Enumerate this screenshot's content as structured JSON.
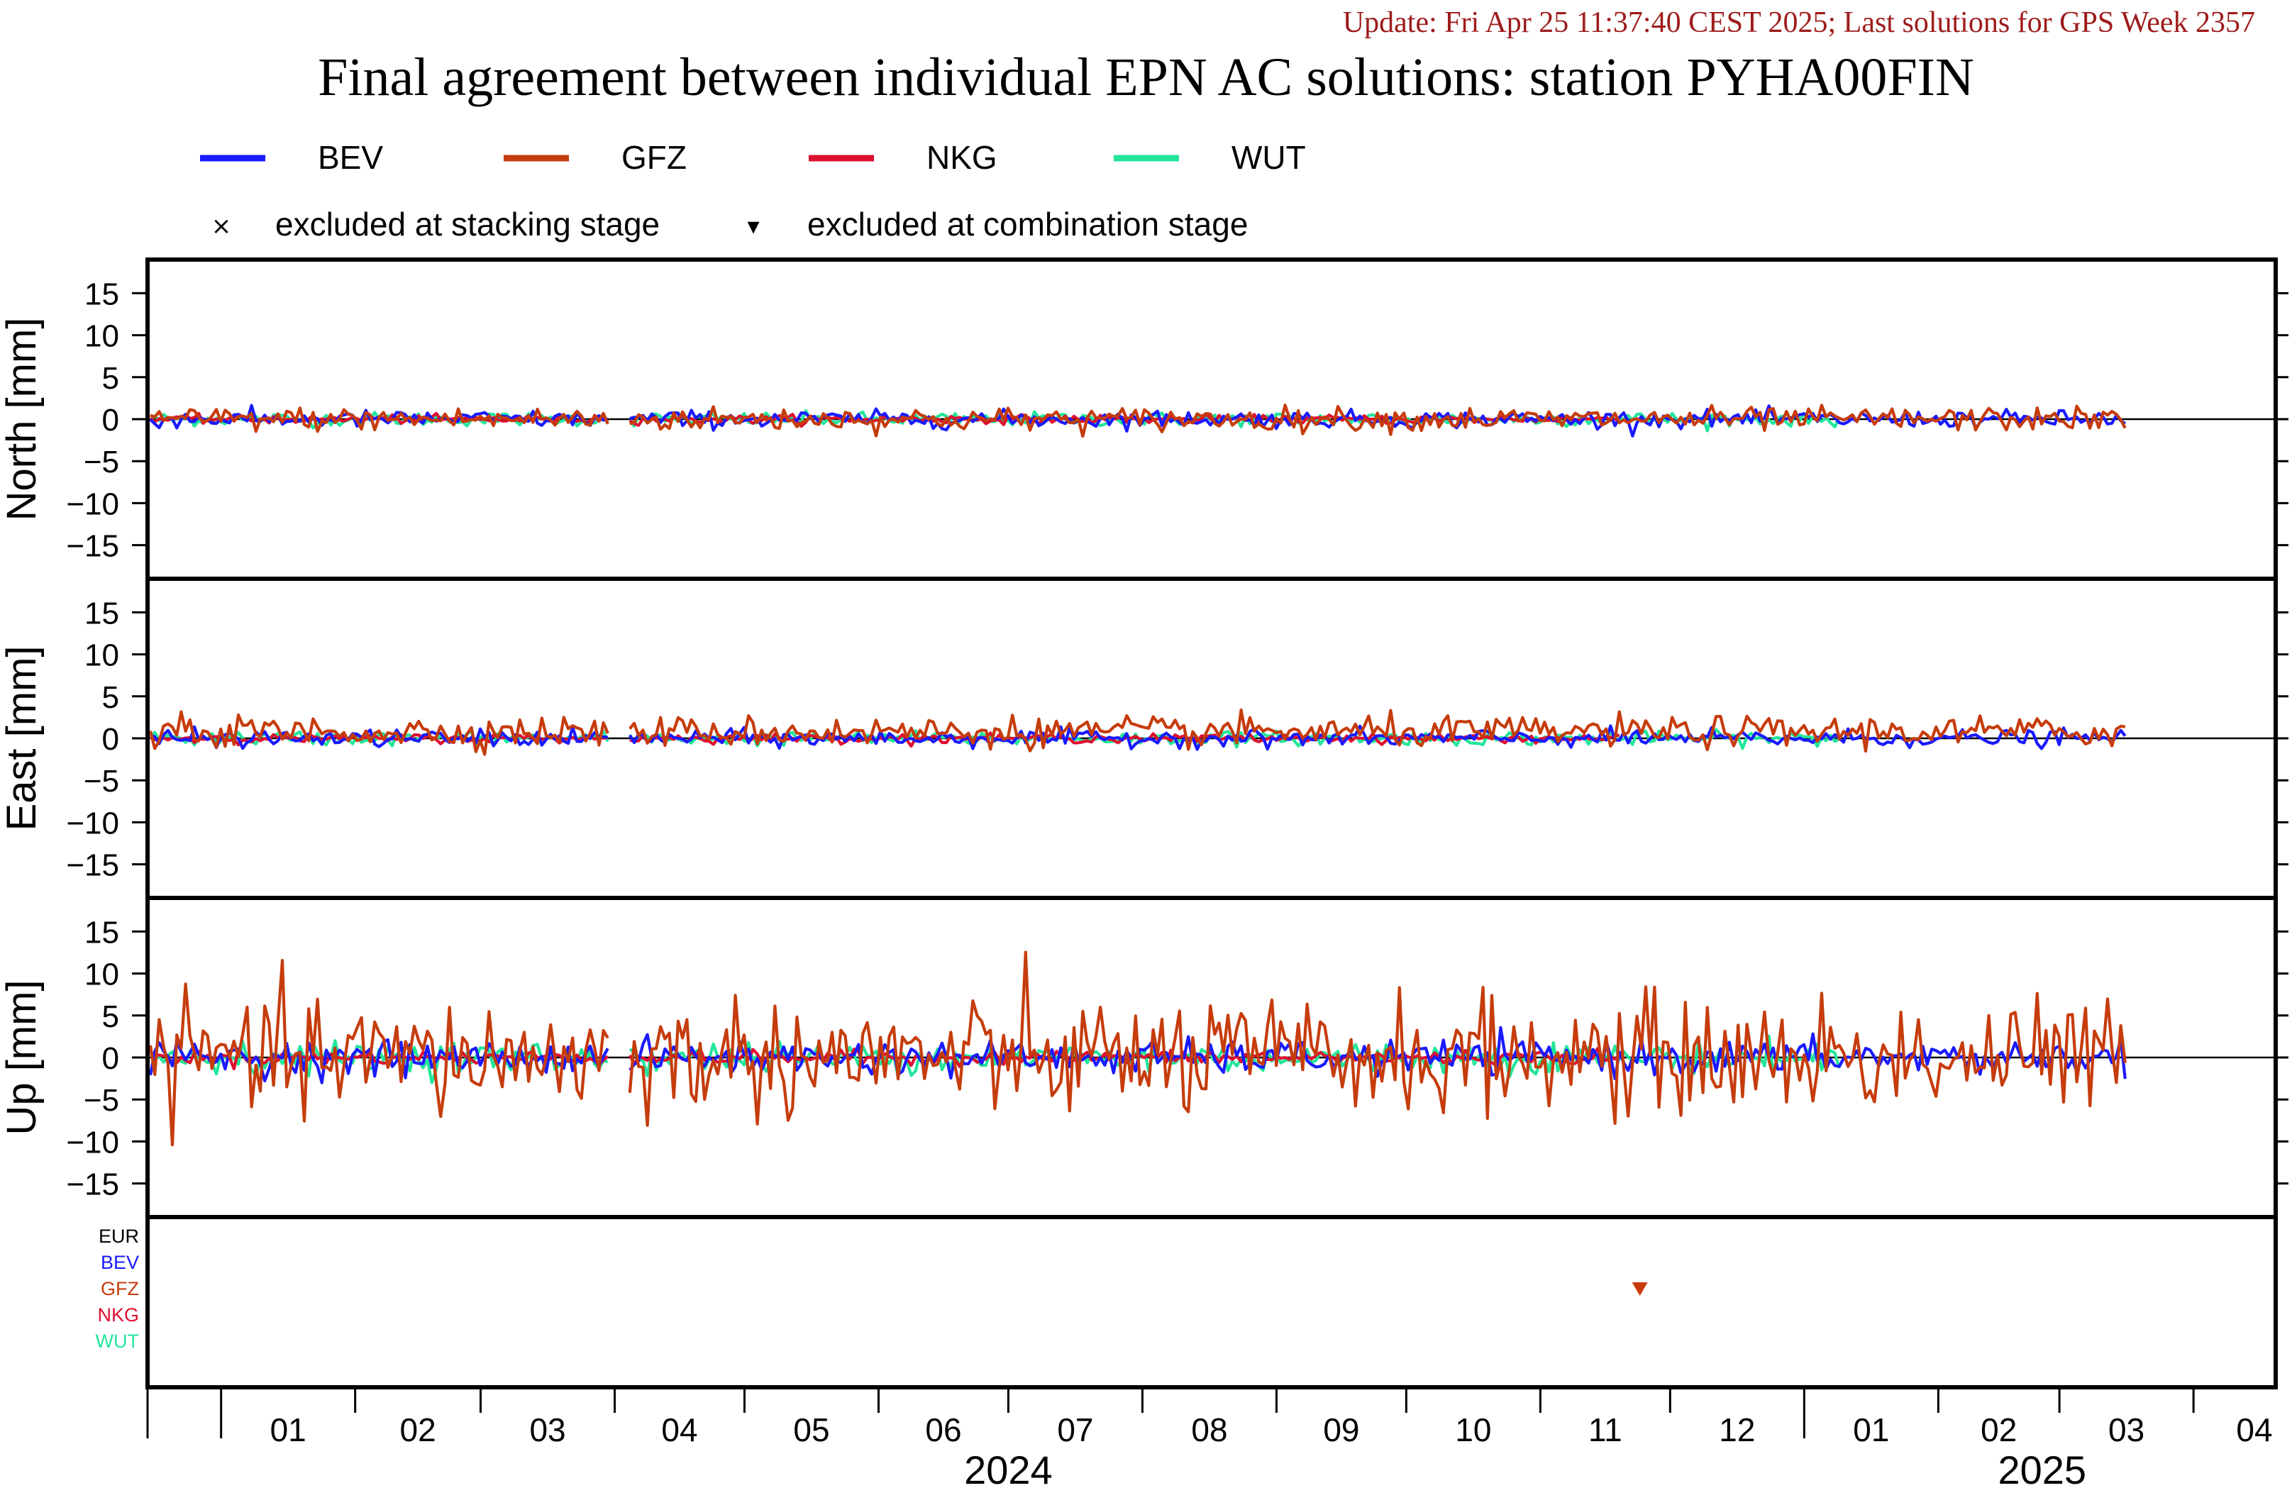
{
  "header": {
    "update": "Update: Fri Apr 25 11:37:40 CEST 2025; Last solutions for GPS Week 2357",
    "title": "Final agreement between individual EPN AC solutions: station PYHA00FIN"
  },
  "legend": {
    "series": [
      {
        "name": "BEV",
        "color": "#1a1aff"
      },
      {
        "name": "GFZ",
        "color": "#c63c0c"
      },
      {
        "name": "NKG",
        "color": "#de1030"
      },
      {
        "name": "WUT",
        "color": "#22e69a"
      }
    ],
    "markers": [
      {
        "symbol": "×",
        "label": "excluded at stacking stage"
      },
      {
        "symbol": "▾",
        "label": "excluded at combination stage"
      }
    ]
  },
  "chart_data": [
    {
      "type": "line",
      "ylabel": "North [mm]",
      "ylim": [
        -19,
        19
      ],
      "yticks": [
        15,
        10,
        5,
        0,
        -5,
        -10,
        -15
      ],
      "amplitudes": {
        "BEV": 0.5,
        "GFZ": 0.7,
        "NKG": 0.25,
        "WUT": 0.4
      },
      "series": [
        "BEV",
        "GFZ",
        "NKG",
        "WUT"
      ]
    },
    {
      "type": "line",
      "ylabel": "East [mm]",
      "ylim": [
        -19,
        19
      ],
      "yticks": [
        15,
        10,
        5,
        0,
        -5,
        -10,
        -15
      ],
      "amplitudes": {
        "BEV": 0.5,
        "GFZ": 0.9,
        "NKG": 0.25,
        "WUT": 0.4
      },
      "offsets": {
        "GFZ": 0.8
      },
      "series": [
        "BEV",
        "GFZ",
        "NKG",
        "WUT"
      ]
    },
    {
      "type": "line",
      "ylabel": "Up [mm]",
      "ylim": [
        -19,
        19
      ],
      "yticks": [
        15,
        10,
        5,
        0,
        -5,
        -10,
        -15
      ],
      "amplitudes": {
        "BEV": 1.0,
        "GFZ": 3.5,
        "NKG": 0.4,
        "WUT": 0.9
      },
      "series": [
        "BEV",
        "GFZ",
        "NKG",
        "WUT"
      ]
    }
  ],
  "exclusion_panel": {
    "labels": [
      {
        "text": "EUR",
        "color": "#000000"
      },
      {
        "text": "BEV",
        "color": "#1a1aff"
      },
      {
        "text": "GFZ",
        "color": "#c63c0c"
      },
      {
        "text": "NKG",
        "color": "#de1030"
      },
      {
        "text": "WUT",
        "color": "#22e69a"
      }
    ],
    "markers": [
      {
        "series": "GFZ",
        "date": "2024-11-24",
        "symbol": "▾"
      }
    ]
  },
  "x_axis": {
    "start": "2023-12-15",
    "end": "2025-04-20",
    "month_labels": [
      "01",
      "02",
      "03",
      "04",
      "05",
      "06",
      "07",
      "08",
      "09",
      "10",
      "11",
      "12",
      "01",
      "02",
      "03",
      "04"
    ],
    "years": [
      {
        "label": "2024",
        "center": "2024-07-01"
      },
      {
        "label": "2025",
        "center": "2025-02-25"
      }
    ],
    "data_end": "2025-03-17"
  }
}
